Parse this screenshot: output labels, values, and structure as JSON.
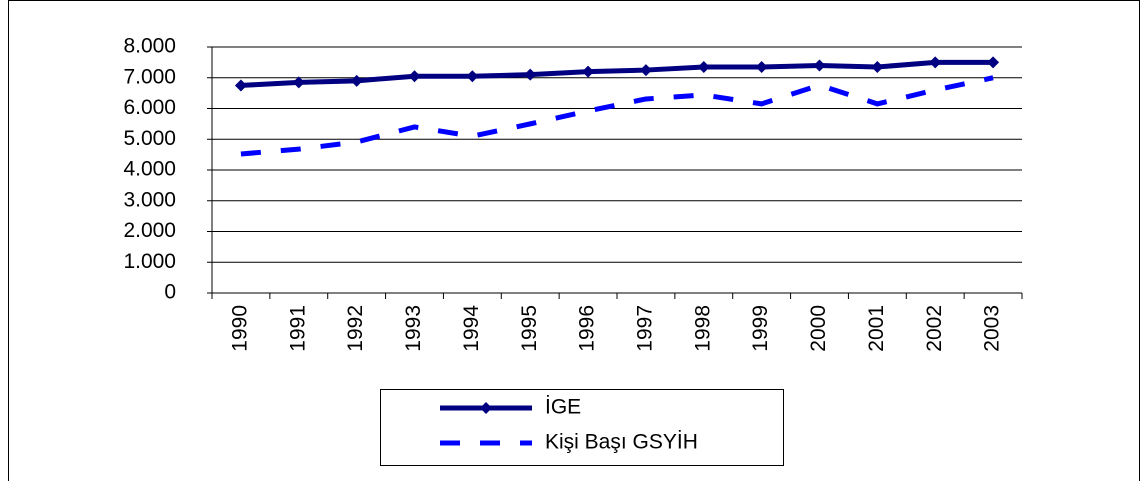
{
  "chart_data": {
    "type": "line",
    "categories": [
      "1990",
      "1991",
      "1992",
      "1993",
      "1994",
      "1995",
      "1996",
      "1997",
      "1998",
      "1999",
      "2000",
      "2001",
      "2002",
      "2003"
    ],
    "series": [
      {
        "name": "İGE",
        "color": "#000080",
        "values": [
          6750,
          6850,
          6900,
          7050,
          7050,
          7100,
          7200,
          7250,
          7350,
          7350,
          7400,
          7350,
          7500,
          7500
        ]
      },
      {
        "name": "Kişi Başı GSYİH",
        "color": "#0000ff",
        "values": [
          4520,
          4680,
          4910,
          5400,
          5100,
          5500,
          5920,
          6310,
          6440,
          6150,
          6760,
          6150,
          6600,
          7000
        ]
      }
    ],
    "ylim": [
      0,
      8000
    ],
    "yticks": [
      0,
      {
        "value": 1000,
        "label": "1.000"
      },
      {
        "value": 2000,
        "label": "2.000"
      },
      {
        "value": 3000,
        "label": "3.000"
      },
      {
        "value": 4000,
        "label": "4.000"
      },
      {
        "value": 5000,
        "label": "5.000"
      },
      {
        "value": 6000,
        "label": "6.000"
      },
      {
        "value": 7000,
        "label": "7.000"
      },
      {
        "value": 8000,
        "label": "8.000"
      }
    ],
    "grid": true
  }
}
